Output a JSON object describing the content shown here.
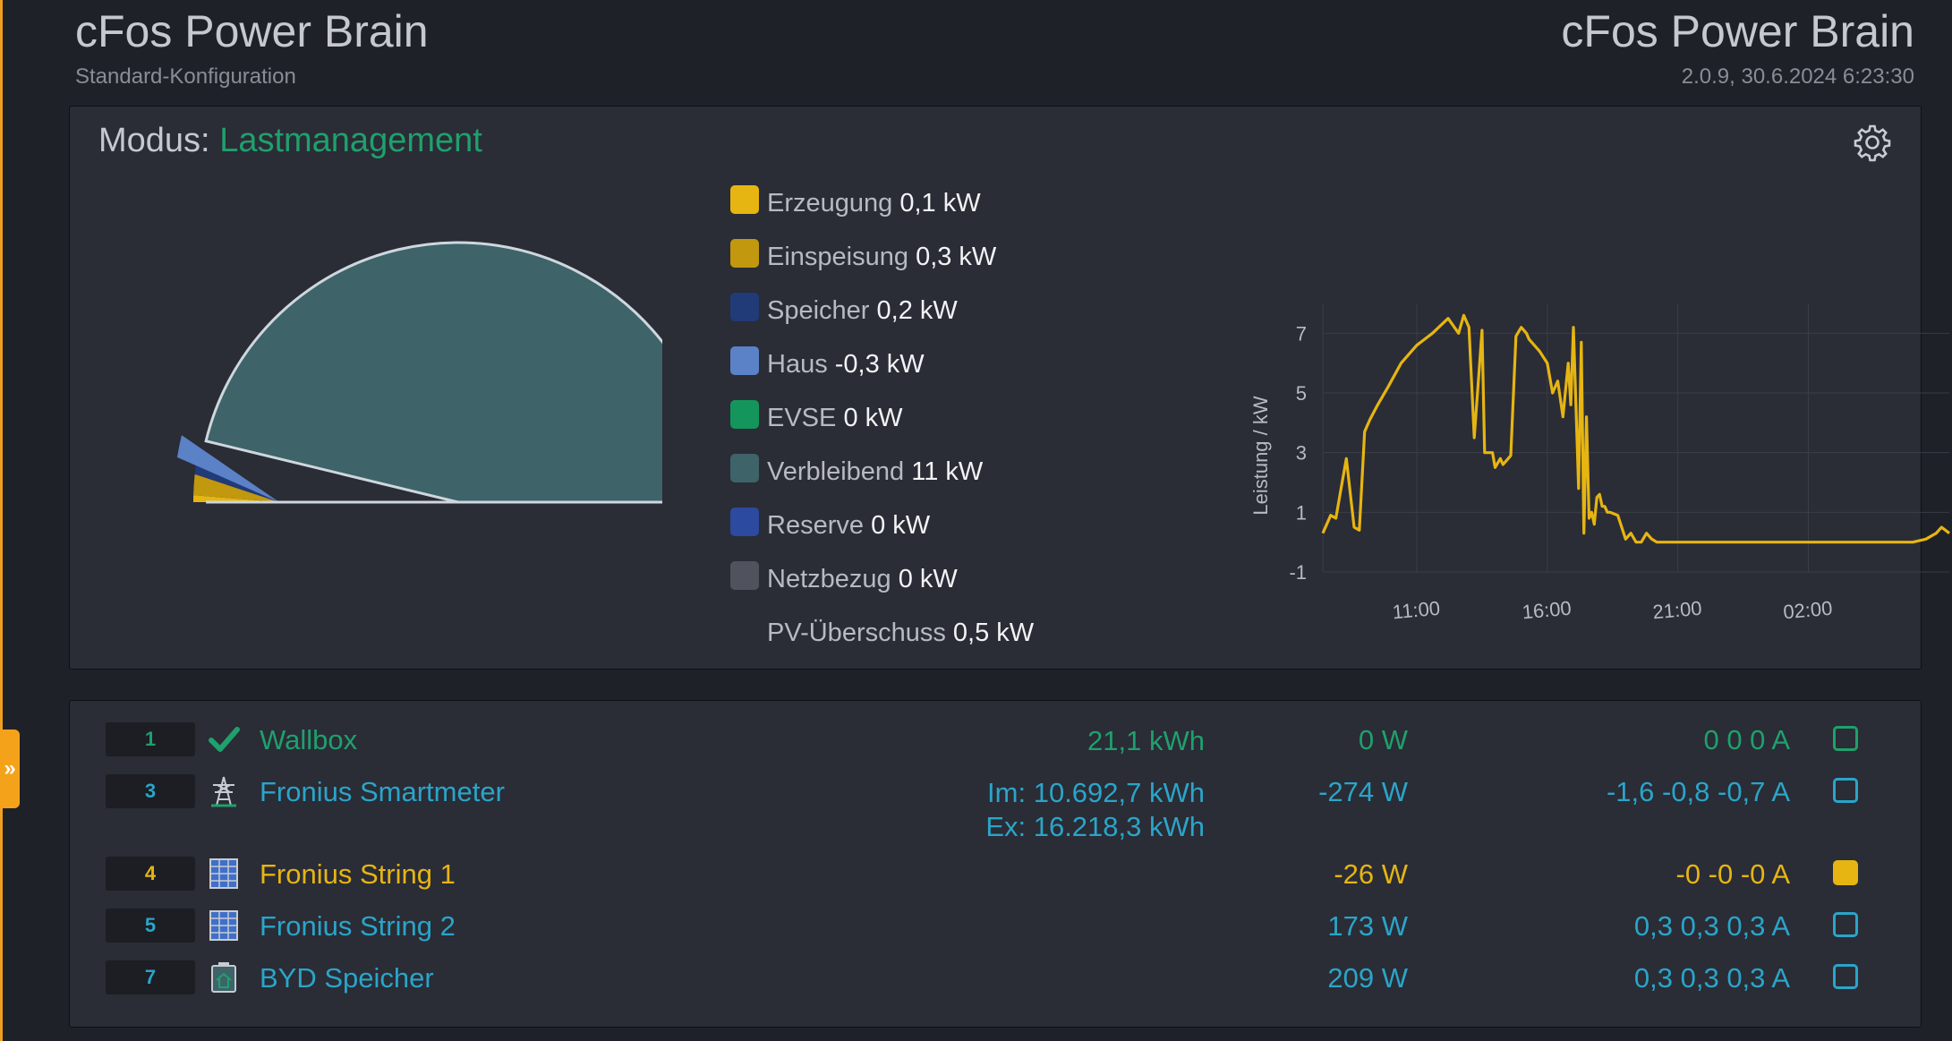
{
  "header": {
    "title_left": "cFos Power Brain",
    "subtitle_left": "Standard-Konfiguration",
    "title_right": "cFos Power Brain",
    "subtitle_right": "2.0.9, 30.6.2024 6:23:30"
  },
  "side_tab_label": "»",
  "mode": {
    "label": "Modus:",
    "value": "Lastmanagement"
  },
  "legend": [
    {
      "label": "Erzeugung",
      "value": "0,1 kW",
      "color": "#e6b512"
    },
    {
      "label": "Einspeisung",
      "value": "0,3 kW",
      "color": "#c1980e"
    },
    {
      "label": "Speicher",
      "value": "0,2 kW",
      "color": "#213a78"
    },
    {
      "label": "Haus",
      "value": "-0,3 kW",
      "color": "#5b81c6"
    },
    {
      "label": "EVSE",
      "value": "0 kW",
      "color": "#14955c"
    },
    {
      "label": "Verbleibend",
      "value": "11 kW",
      "color": "#3e6369"
    },
    {
      "label": "Reserve",
      "value": "0 kW",
      "color": "#2b4aa0"
    },
    {
      "label": "Netzbezug",
      "value": "0 kW",
      "color": "#50525e"
    },
    {
      "label": "PV-Überschuss",
      "value": "0,5 kW",
      "color": ""
    }
  ],
  "gauge_data": {
    "max_kw": 11,
    "segments": [
      {
        "name": "Erzeugung",
        "value_kw": 0.1,
        "color": "#e6b512"
      },
      {
        "name": "Einspeisung",
        "value_kw": 0.3,
        "color": "#c1980e"
      },
      {
        "name": "Speicher",
        "value_kw": 0.2,
        "color": "#213a78"
      },
      {
        "name": "Haus",
        "value_kw": 0.3,
        "color": "#5b81c6"
      },
      {
        "name": "Verbleibend",
        "value_kw": 11,
        "color": "#3e6369"
      }
    ]
  },
  "chart_data": {
    "type": "line",
    "ylabel": "Leistung / kW",
    "xlabel": "",
    "yticks": [
      7,
      5,
      3,
      1,
      -1
    ],
    "ylim": [
      -1,
      8
    ],
    "xticks": [
      "11:00",
      "16:00",
      "21:00",
      "02:00"
    ],
    "xtick_hours": [
      11,
      16,
      21,
      26
    ],
    "xlim_hours": [
      7.4,
      31.4
    ],
    "grid": true,
    "series": [
      {
        "color": "#e6b512",
        "x": [
          7.4,
          7.7,
          7.9,
          8.1,
          8.3,
          8.6,
          8.8,
          9.0,
          9.2,
          9.5,
          9.7,
          9.9,
          10.4,
          11.0,
          11.6,
          12.2,
          12.6,
          12.8,
          13.0,
          13.2,
          13.5,
          13.6,
          13.9,
          14.0,
          14.2,
          14.3,
          14.4,
          14.6,
          14.8,
          15.0,
          15.2,
          15.3,
          15.5,
          15.7,
          16.0,
          16.2,
          16.4,
          16.6,
          16.8,
          16.9,
          17.0,
          17.2,
          17.3,
          17.4,
          17.5,
          17.6,
          17.7,
          17.8,
          17.9,
          18.0,
          18.1,
          18.2,
          18.3,
          18.4,
          18.7,
          19.0,
          19.2,
          19.4,
          19.6,
          19.8,
          20.0,
          20.2,
          20.4,
          20.7,
          21.0,
          22.0,
          24.0,
          26.0,
          28.0,
          29.0,
          30.0,
          30.5,
          30.9,
          31.1,
          31.4
        ],
        "y": [
          0.3,
          0.9,
          0.8,
          1.8,
          2.8,
          0.5,
          0.4,
          3.7,
          4.1,
          4.6,
          4.9,
          5.2,
          6.0,
          6.6,
          7.0,
          7.5,
          7.0,
          7.6,
          7.2,
          3.5,
          7.1,
          3.0,
          3.0,
          2.5,
          2.8,
          2.6,
          2.7,
          2.9,
          6.9,
          7.2,
          7.0,
          6.8,
          6.6,
          6.4,
          6.0,
          5.0,
          5.4,
          4.2,
          6.0,
          4.6,
          7.2,
          1.8,
          6.7,
          0.3,
          4.2,
          0.8,
          1.0,
          0.6,
          1.5,
          1.6,
          1.2,
          1.2,
          1.0,
          1.0,
          0.9,
          0.1,
          0.3,
          0.0,
          0.0,
          0.3,
          0.1,
          0.0,
          0.0,
          0.0,
          0.0,
          0.0,
          0.0,
          0.0,
          0.0,
          0.0,
          0.0,
          0.1,
          0.3,
          0.5,
          0.3
        ]
      }
    ]
  },
  "devices": [
    {
      "index": "1",
      "name": "Wallbox",
      "energy": [
        "21,1 kWh"
      ],
      "power": "0 W",
      "current": "0 0 0 A",
      "color": "#1fa06c",
      "icon": "check-icon",
      "box_filled": false
    },
    {
      "index": "3",
      "name": "Fronius Smartmeter",
      "energy": [
        "Im: 10.692,7 kWh",
        "Ex: 16.218,3 kWh"
      ],
      "power": "-274 W",
      "current": "-1,6 -0,8 -0,7 A",
      "color": "#2aa5c9",
      "icon": "power-tower-icon",
      "box_filled": false
    },
    {
      "index": "4",
      "name": "Fronius String 1",
      "energy": [],
      "power": "-26 W",
      "current": "-0 -0 -0 A",
      "color": "#e6b512",
      "icon": "solar-panel-icon",
      "box_filled": true
    },
    {
      "index": "5",
      "name": "Fronius String 2",
      "energy": [],
      "power": "173 W",
      "current": "0,3 0,3 0,3 A",
      "color": "#2aa5c9",
      "icon": "solar-panel-icon",
      "box_filled": false
    },
    {
      "index": "7",
      "name": "BYD Speicher",
      "energy": [],
      "power": "209 W",
      "current": "0,3 0,3 0,3 A",
      "color": "#2aa5c9",
      "icon": "battery-icon",
      "box_filled": false
    }
  ]
}
